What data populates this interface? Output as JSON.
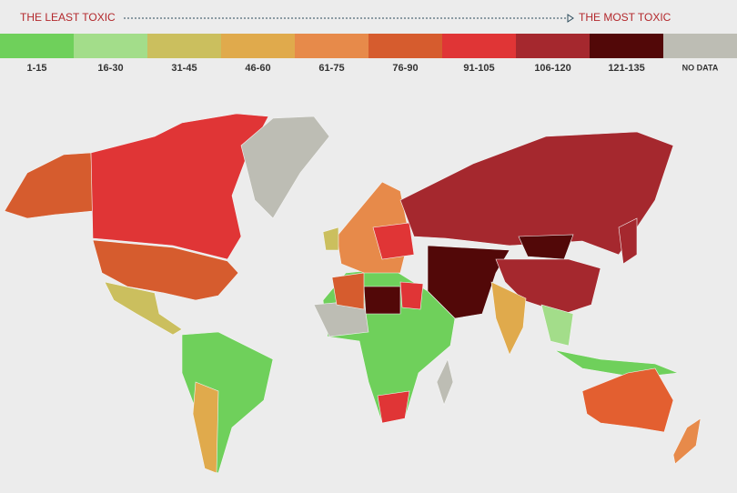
{
  "header": {
    "left": "THE LEAST TOXIC",
    "right": "THE MOST TOXIC"
  },
  "legend": [
    {
      "label": "1-15",
      "color": "#6fd05b"
    },
    {
      "label": "16-30",
      "color": "#a3dd8a"
    },
    {
      "label": "31-45",
      "color": "#cbbf5e"
    },
    {
      "label": "46-60",
      "color": "#e0aa4c"
    },
    {
      "label": "61-75",
      "color": "#e78a4a"
    },
    {
      "label": "76-90",
      "color": "#d65c2e"
    },
    {
      "label": "91-105",
      "color": "#e03536"
    },
    {
      "label": "106-120",
      "color": "#a5282e"
    },
    {
      "label": "121-135",
      "color": "#520808"
    },
    {
      "label": "NO DATA",
      "color": "#bdbdb4"
    }
  ]
}
